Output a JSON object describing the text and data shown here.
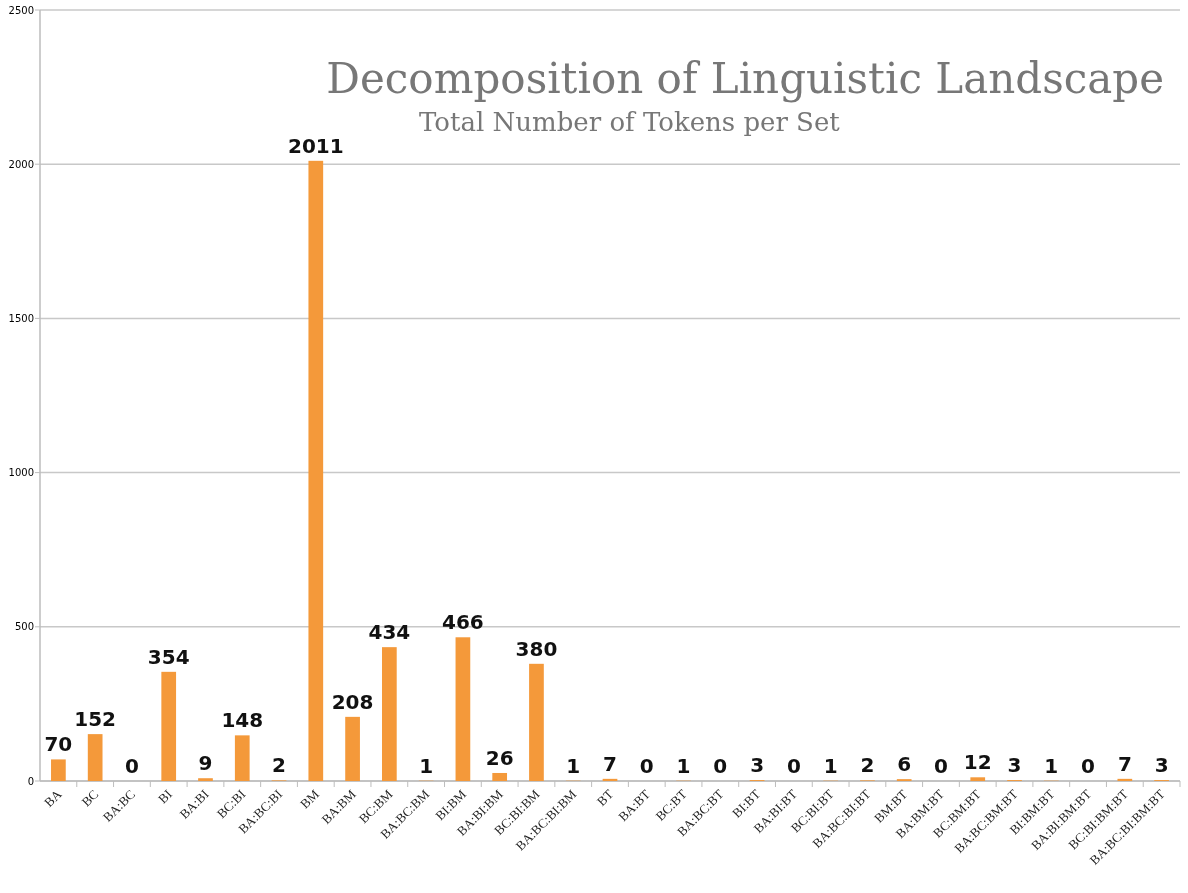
{
  "chart_data": {
    "type": "bar",
    "title": "Decomposition of Linguistic Landscape",
    "subtitle": "Total Number of Tokens per Set",
    "categories": [
      "BA",
      "BC",
      "BA:BC",
      "BI",
      "BA:BI",
      "BC:BI",
      "BA:BC:BI",
      "BM",
      "BA:BM",
      "BC:BM",
      "BA:BC:BM",
      "BI:BM",
      "BA:BI:BM",
      "BC:BI:BM",
      "BA:BC:BI:BM",
      "BT",
      "BA:BT",
      "BC:BT",
      "BA:BC:BT",
      "BI:BT",
      "BA:BI:BT",
      "BC:BI:BT",
      "BA:BC:BI:BT",
      "BM:BT",
      "BA:BM:BT",
      "BC:BM:BT",
      "BA:BC:BM:BT",
      "BI:BM:BT",
      "BA:BI:BM:BT",
      "BC:BI:BM:BT",
      "BA:BC:BI:BM:BT"
    ],
    "values": [
      70,
      152,
      0,
      354,
      9,
      148,
      2,
      2011,
      208,
      434,
      1,
      466,
      26,
      380,
      1,
      7,
      0,
      1,
      0,
      3,
      0,
      1,
      2,
      6,
      0,
      12,
      3,
      1,
      0,
      7,
      3
    ],
    "color": "#f4993a",
    "ylim": [
      0,
      2500
    ],
    "yticks": [
      0,
      500,
      1000,
      1500,
      2000,
      2500
    ],
    "grid": "y",
    "data_labels": true
  }
}
